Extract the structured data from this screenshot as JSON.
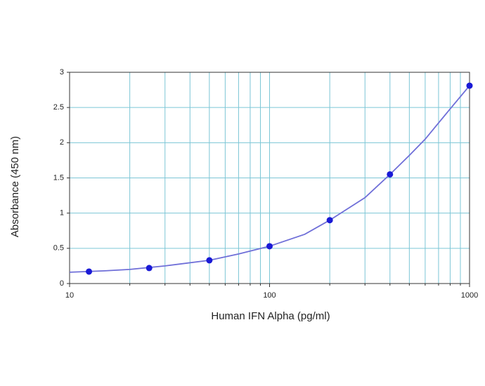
{
  "chart_data": {
    "type": "scatter",
    "xlabel": "Human IFN Alpha (pg/ml)",
    "ylabel": "Absorbance (450 nm)",
    "log_x": true,
    "xlim": [
      10,
      1000
    ],
    "ylim": [
      0,
      3
    ],
    "xticks": [
      10,
      100,
      1000
    ],
    "xminor": [
      20,
      30,
      40,
      50,
      60,
      70,
      80,
      90,
      200,
      300,
      400,
      500,
      600,
      700,
      800,
      900
    ],
    "yticks": [
      0,
      0.5,
      1,
      1.5,
      2,
      2.5,
      3
    ],
    "grid": true,
    "grid_color": "#7cc6d6",
    "series": [
      {
        "mode": "markers",
        "color": "#1a1ad6",
        "x": [
          12.5,
          25,
          50,
          100,
          200,
          400,
          1000
        ],
        "values": [
          0.17,
          0.22,
          0.33,
          0.53,
          0.9,
          1.55,
          2.81
        ]
      },
      {
        "mode": "line",
        "color": "#6f6fd8",
        "x": [
          10,
          15,
          20,
          30,
          50,
          70,
          100,
          150,
          200,
          300,
          400,
          500,
          600,
          700,
          800,
          1000
        ],
        "values": [
          0.16,
          0.18,
          0.2,
          0.25,
          0.33,
          0.42,
          0.53,
          0.7,
          0.9,
          1.22,
          1.55,
          1.82,
          2.05,
          2.28,
          2.48,
          2.81
        ]
      }
    ]
  }
}
